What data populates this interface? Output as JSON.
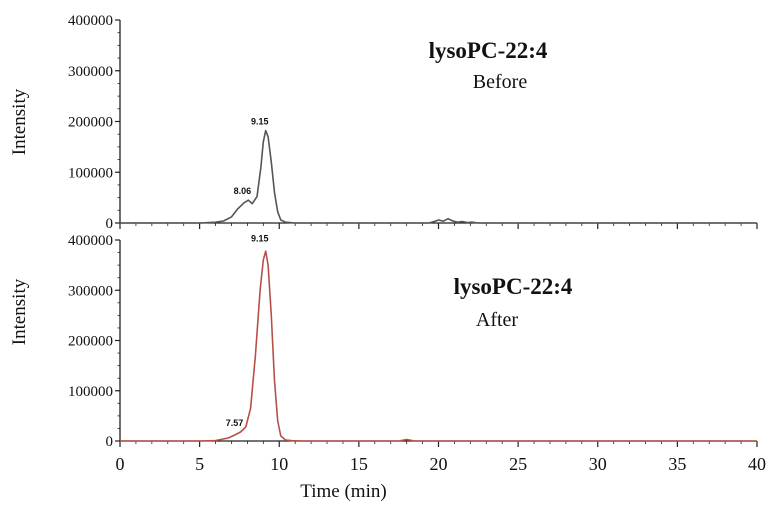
{
  "chart_data": [
    {
      "type": "line",
      "panel": "top",
      "title": "lysoPC-22:4",
      "subtitle": "Before",
      "ylabel": "Intensity",
      "xlabel": "",
      "xlim": [
        0,
        40
      ],
      "ylim": [
        0,
        400000
      ],
      "yticks": [
        0,
        100000,
        200000,
        300000,
        400000
      ],
      "line_color": "#555555",
      "grid": false,
      "peak_labels": [
        {
          "x": 8.06,
          "y": 45000,
          "text": "8.06"
        },
        {
          "x": 9.15,
          "y": 182000,
          "text": "9.15"
        }
      ],
      "series": [
        {
          "x": [
            0,
            5,
            6,
            6.5,
            7,
            7.4,
            7.8,
            8.06,
            8.3,
            8.6,
            8.85,
            9.0,
            9.15,
            9.3,
            9.5,
            9.7,
            9.9,
            10.1,
            10.4,
            11,
            15,
            19.4,
            19.7,
            20.0,
            20.3,
            20.6,
            20.9,
            21.2,
            21.5,
            21.8,
            22.1,
            22.5,
            25,
            40
          ],
          "y": [
            0,
            0,
            1500,
            4000,
            12000,
            28000,
            40000,
            45000,
            38000,
            52000,
            110000,
            160000,
            182000,
            170000,
            120000,
            60000,
            22000,
            6000,
            1500,
            0,
            0,
            0,
            2500,
            6000,
            3500,
            8500,
            4000,
            1500,
            3000,
            1000,
            1500,
            0,
            0,
            0
          ]
        }
      ]
    },
    {
      "type": "line",
      "panel": "bottom",
      "title": "lysoPC-22:4",
      "subtitle": "After",
      "ylabel": "Intensity",
      "xlabel": "Time (min)",
      "xlim": [
        0,
        40
      ],
      "ylim": [
        0,
        400000
      ],
      "xticks": [
        0,
        5,
        10,
        15,
        20,
        25,
        30,
        35,
        40
      ],
      "yticks": [
        0,
        100000,
        200000,
        300000,
        400000
      ],
      "line_color": "#b8504a",
      "grid": false,
      "peak_labels": [
        {
          "x": 7.57,
          "y": 18000,
          "text": "7.57"
        },
        {
          "x": 9.15,
          "y": 385000,
          "text": "9.15"
        }
      ],
      "series": [
        {
          "x": [
            0,
            5,
            6,
            6.8,
            7.2,
            7.57,
            7.9,
            8.2,
            8.5,
            8.8,
            9.0,
            9.15,
            9.3,
            9.5,
            9.7,
            9.9,
            10.1,
            10.4,
            10.8,
            11.5,
            17.5,
            18.0,
            18.5,
            25,
            40
          ],
          "y": [
            0,
            0,
            1000,
            6000,
            12000,
            18000,
            28000,
            65000,
            170000,
            300000,
            360000,
            378000,
            350000,
            250000,
            120000,
            40000,
            10000,
            2000,
            500,
            0,
            0,
            3000,
            0,
            0,
            0
          ]
        }
      ]
    }
  ]
}
